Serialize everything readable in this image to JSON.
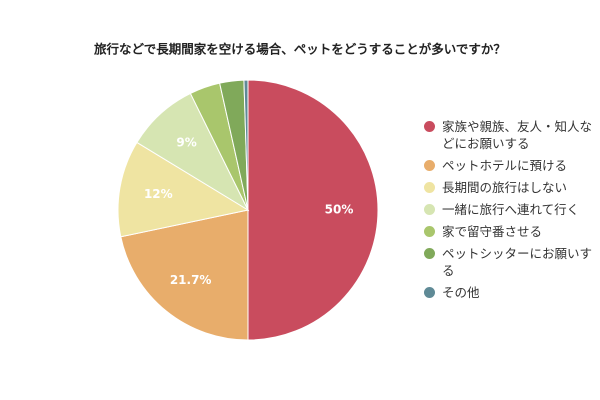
{
  "chart_data": {
    "type": "pie",
    "title": "旅行などで長期間家を空ける場合、ペットをどうすることが多いですか？",
    "categories": [
      "家族や親族、友人・知人などにお願いする",
      "ペットホテルに預ける",
      "長期間の旅行はしない",
      "一緒に旅行へ連れて行く",
      "家で留守番させる",
      "ペットシッターにお願いする",
      "その他"
    ],
    "values": [
      50,
      21.7,
      12,
      9,
      3.8,
      3.0,
      0.5
    ],
    "value_labels": [
      "50%",
      "21.7%",
      "12%",
      "9%",
      null,
      null,
      null
    ],
    "colors": [
      "#c94c5e",
      "#e8ad6b",
      "#efe4a2",
      "#d6e5b2",
      "#a9c66c",
      "#80a95a",
      "#5f8a96"
    ],
    "legend": "right"
  }
}
